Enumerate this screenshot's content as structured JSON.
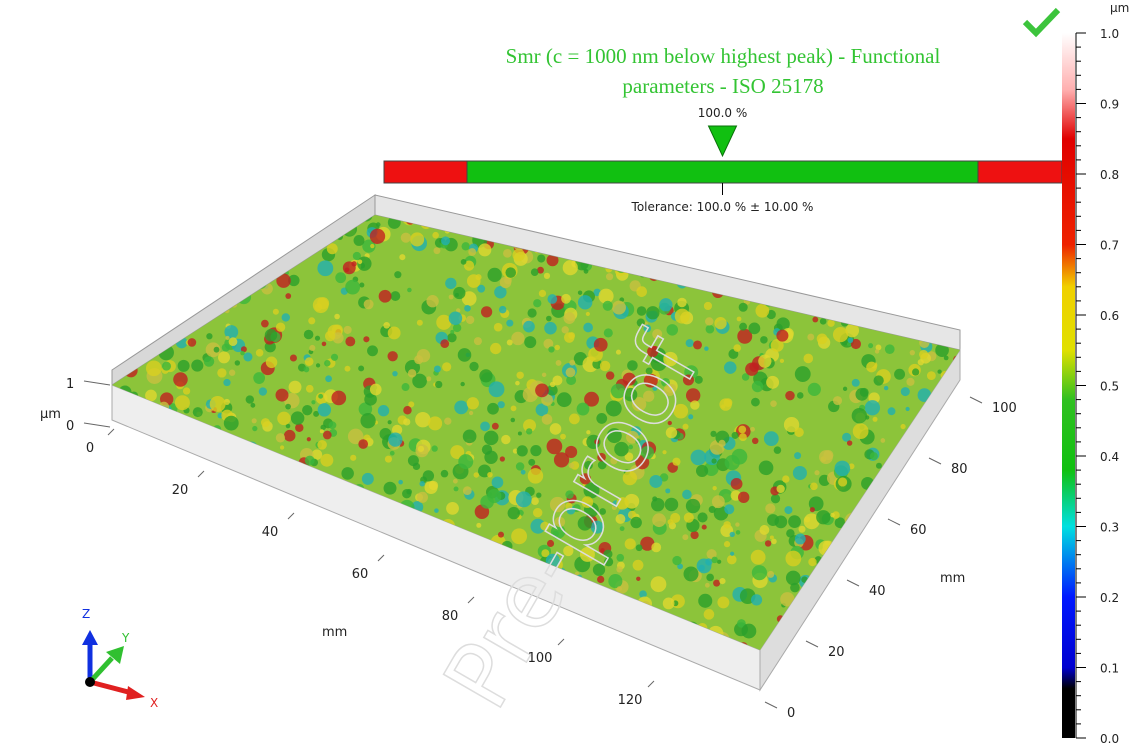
{
  "title": "Smr (c = 1000 nm below highest peak) - Functional parameters - ISO 25178",
  "indicator": {
    "value": 100.0,
    "value_label": "100.0 %",
    "nominal": 100.0,
    "tolerance": 10.0,
    "tolerance_label": "Tolerance: 100.0 % ± 10.00 %"
  },
  "colorbar": {
    "unit": "µm",
    "lim": [
      0,
      1
    ],
    "ticks": [
      {
        "value": 0,
        "label": "0.0"
      },
      {
        "value": 0.1,
        "label": "0.1"
      },
      {
        "value": 0.2,
        "label": "0.2"
      },
      {
        "value": 0.3,
        "label": "0.3"
      },
      {
        "value": 0.4,
        "label": "0.4"
      },
      {
        "value": 0.5,
        "label": "0.5"
      },
      {
        "value": 0.6,
        "label": "0.6"
      },
      {
        "value": 0.7,
        "label": "0.7"
      },
      {
        "value": 0.8,
        "label": "0.8"
      },
      {
        "value": 0.9,
        "label": "0.9"
      },
      {
        "value": 1,
        "label": "1.0"
      }
    ]
  },
  "x_axis": {
    "label": "mm",
    "ticks": [
      0,
      20,
      40,
      60,
      80,
      100,
      120
    ]
  },
  "y_axis": {
    "label": "mm",
    "ticks": [
      0,
      20,
      40,
      60,
      80,
      100
    ]
  },
  "z_axis": {
    "label": "µm",
    "ticks": [
      0,
      1
    ]
  },
  "triad": {
    "x": "X",
    "y": "Y",
    "z": "Z"
  },
  "watermark": "Pre-proof"
}
